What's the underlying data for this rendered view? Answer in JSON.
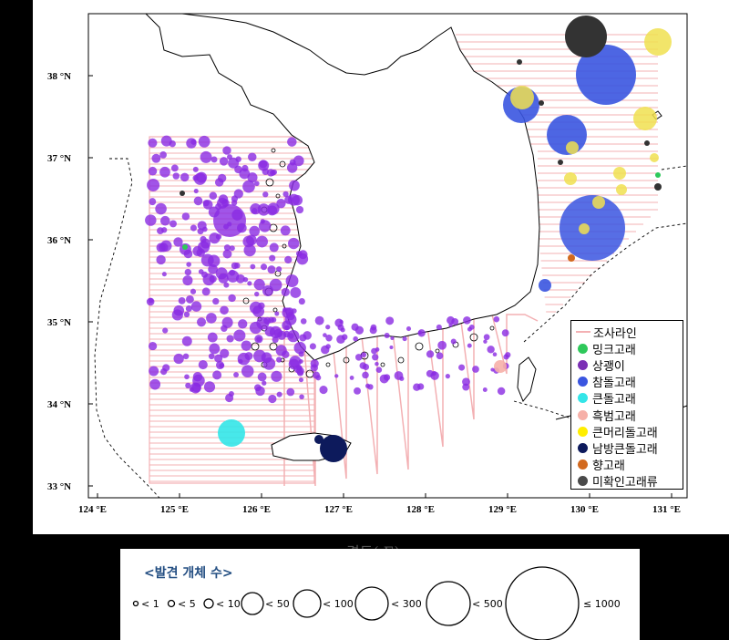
{
  "axes": {
    "lat_labels": [
      "38 °N",
      "37 °N",
      "36 °N",
      "35 °N",
      "34 °N",
      "33 °N"
    ],
    "lon_labels": [
      "124 °E",
      "125 °E",
      "126 °E",
      "127 °E",
      "128 °E",
      "129 °E",
      "130 °E",
      "131 °E"
    ],
    "x_title": "경도( E)"
  },
  "legend": {
    "items": [
      {
        "label": "조사라인",
        "color": "#f3b0b3",
        "kind": "line"
      },
      {
        "label": "밍크고래",
        "color": "#2ec85a",
        "kind": "dot"
      },
      {
        "label": "상괭이",
        "color": "#7b2fb5",
        "kind": "dot"
      },
      {
        "label": "참돌고래",
        "color": "#3a55e0",
        "kind": "dot"
      },
      {
        "label": "큰돌고래",
        "color": "#33e5e8",
        "kind": "dot"
      },
      {
        "label": "흑범고래",
        "color": "#f6b0a8",
        "kind": "dot"
      },
      {
        "label": "큰머리돌고래",
        "color": "#ffee00",
        "kind": "dot"
      },
      {
        "label": "남방큰돌고래",
        "color": "#0d1a5c",
        "kind": "dot"
      },
      {
        "label": "향고래",
        "color": "#d2691e",
        "kind": "dot"
      },
      {
        "label": "미확인고래류",
        "color": "#4a4a4a",
        "kind": "dot"
      }
    ]
  },
  "size_legend": {
    "title": "<발견 개체 수>",
    "items": [
      {
        "label": "< 1"
      },
      {
        "label": "< 5"
      },
      {
        "label": "< 10"
      },
      {
        "label": "< 50"
      },
      {
        "label": "< 100"
      },
      {
        "label": "< 300"
      },
      {
        "label": "< 500"
      },
      {
        "label": "≤ 1000"
      }
    ]
  },
  "colors": {
    "survey_line": "#f3b0b3",
    "porpoise": "#8a2be2",
    "common_dolphin": "#3a55e0",
    "bottlenose": "#33e5e8",
    "false_killer": "#f6b0a8",
    "pilot": "#f0e050",
    "indo_pacific": "#0d1a5c",
    "sperm": "#d2691e",
    "unidentified": "#333333",
    "minke": "#2ec85a"
  }
}
